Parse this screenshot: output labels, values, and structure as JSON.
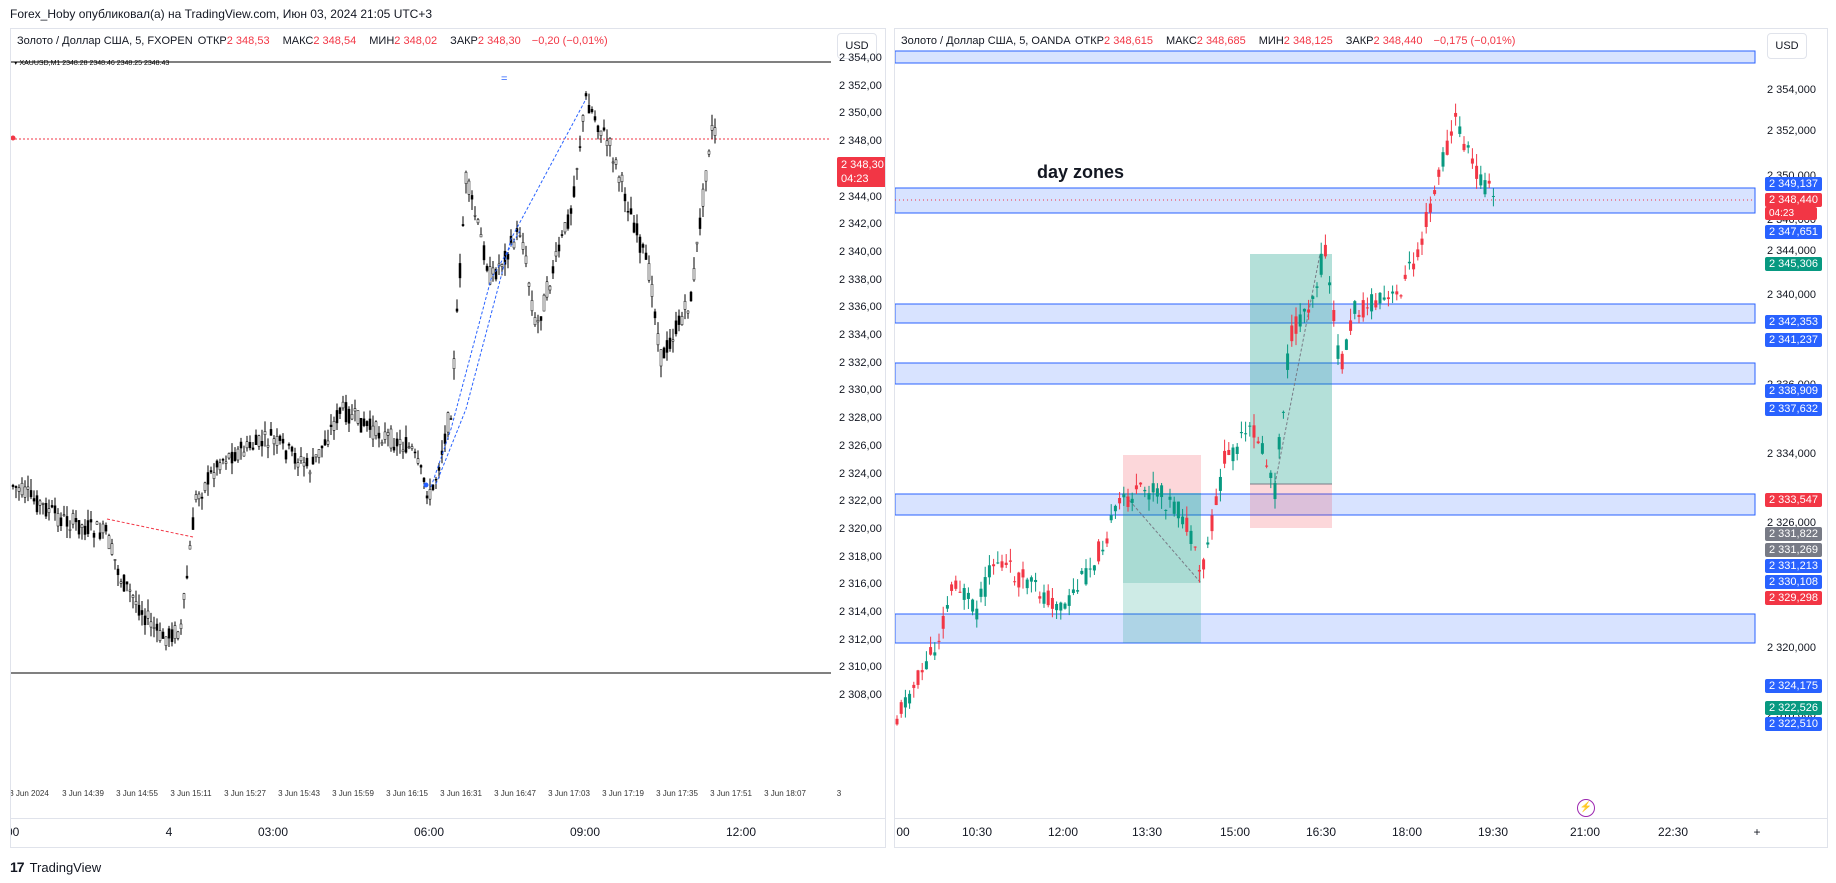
{
  "header": {
    "published": "Forex_Hoby опубликовал(а) на TradingView.com, Июн 03, 2024 21:05 UTC+3"
  },
  "footer": {
    "brand": "TradingView",
    "logo_glyph": "17"
  },
  "colors": {
    "up": "#089981",
    "down": "#f23645",
    "zone": "#2962ff",
    "mt_candle": "#000000"
  },
  "left_chart": {
    "legend": {
      "symbol": "Золото / Доллар США, 5, FXOPEN",
      "o_label": "ОТКР",
      "o": "2 348,53",
      "h_label": "МАКС",
      "h": "2 348,54",
      "l_label": "МИН",
      "l": "2 348,02",
      "c_label": "ЗАКР",
      "c": "2 348,30",
      "chg": "−0,20 (−0,01%)"
    },
    "currency": "USD",
    "inner_title": "▾ XAUUSD,M1  2348.28 2348.46 2348.25 2348.43",
    "marker": "=",
    "price_ticks": [
      "2 354,00",
      "2 352,00",
      "2 350,00",
      "2 348,00",
      "2 346,00",
      "2 344,00",
      "2 342,00",
      "2 340,00",
      "2 338,00",
      "2 336,00",
      "2 334,00",
      "2 332,00",
      "2 330,00",
      "2 328,00",
      "2 326,00",
      "2 324,00",
      "2 322,00",
      "2 320,00",
      "2 318,00",
      "2 316,00",
      "2 314,00",
      "2 312,00",
      "2 310,00",
      "2 308,00"
    ],
    "last_price": "2 348,30",
    "countdown": "04:23",
    "mt_time_ticks": [
      "3 Jun 2024",
      "3 Jun 14:39",
      "3 Jun 14:55",
      "3 Jun 15:11",
      "3 Jun 15:27",
      "3 Jun 15:43",
      "3 Jun 15:59",
      "3 Jun 16:15",
      "3 Jun 16:31",
      "3 Jun 16:47",
      "3 Jun 17:03",
      "3 Jun 17:19",
      "3 Jun 17:35",
      "3 Jun 17:51",
      "3 Jun 18:07",
      "3"
    ],
    "time_ticks": [
      ":00",
      "4",
      "03:00",
      "06:00",
      "09:00",
      "12:00"
    ]
  },
  "right_chart": {
    "legend": {
      "symbol": "Золото / Доллар США, 5, OANDA",
      "o_label": "ОТКР",
      "o": "2 348,615",
      "h_label": "МАКС",
      "h": "2 348,685",
      "l_label": "МИН",
      "l": "2 348,125",
      "c_label": "ЗАКР",
      "c": "2 348,440",
      "chg": "−0,175 (−0,01%)"
    },
    "currency": "USD",
    "annotation": "day zones",
    "price_ticks": [
      "2 354,000",
      "2 352,000",
      "2 350,000",
      "2 346,000",
      "2 344,000",
      "2 340,000",
      "2 336,000",
      "2 334,000",
      "2 326,000",
      "2 320,000",
      "2 318,000"
    ],
    "tags": [
      {
        "label": "2 349,137",
        "color": "#2962ff"
      },
      {
        "label": "2 348,440",
        "color": "#f23645"
      },
      {
        "label": "2 347,651",
        "color": "#2962ff"
      },
      {
        "label": "2 345,306",
        "color": "#089981"
      },
      {
        "label": "2 342,353",
        "color": "#2962ff"
      },
      {
        "label": "2 341,237",
        "color": "#2962ff"
      },
      {
        "label": "2 338,909",
        "color": "#2962ff"
      },
      {
        "label": "2 337,632",
        "color": "#2962ff"
      },
      {
        "label": "2 333,547",
        "color": "#f23645"
      },
      {
        "label": "2 331,822",
        "color": "#787b86"
      },
      {
        "label": "2 331,269",
        "color": "#787b86"
      },
      {
        "label": "2 331,213",
        "color": "#2962ff"
      },
      {
        "label": "2 330,108",
        "color": "#2962ff"
      },
      {
        "label": "2 329,298",
        "color": "#f23645"
      },
      {
        "label": "2 324,175",
        "color": "#2962ff"
      },
      {
        "label": "2 322,526",
        "color": "#089981"
      },
      {
        "label": "2 322,510",
        "color": "#2962ff"
      }
    ],
    "countdown": "04:23",
    "time_ticks": [
      "00",
      "10:30",
      "12:00",
      "13:30",
      "15:00",
      "16:30",
      "18:00",
      "19:30",
      "21:00",
      "22:30",
      "+"
    ]
  }
}
